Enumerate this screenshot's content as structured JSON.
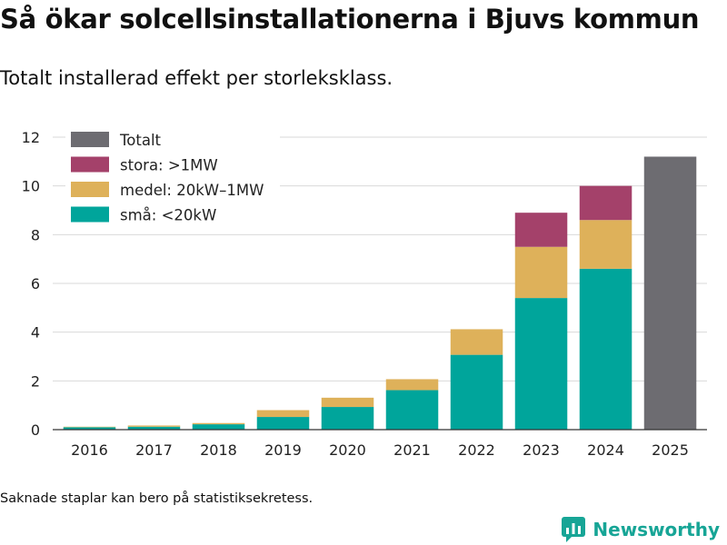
{
  "header": {
    "title": "Så ökar solcellsinstallationerna i Bjuvs kommun",
    "subtitle": "Totalt installerad effekt per storleksklass."
  },
  "footer": {
    "note": "Saknade staplar kan bero på statistiksekretess.",
    "brand": "Newsworthy",
    "brand_icon": "chart-logo-icon"
  },
  "colors": {
    "small": "#00a59b",
    "medium": "#deb15a",
    "large": "#a4416a",
    "total": "#6d6c71",
    "brand": "#17a596"
  },
  "chart_data": {
    "type": "bar",
    "stacked": true,
    "title": "Så ökar solcellsinstallationerna i Bjuvs kommun",
    "subtitle": "Totalt installerad effekt per storleksklass.",
    "xlabel": "",
    "ylabel": "",
    "ylim": [
      0,
      12
    ],
    "yticks": [
      0,
      2,
      4,
      6,
      8,
      10,
      12
    ],
    "grid": true,
    "legend_position": "top-left",
    "categories": [
      "2016",
      "2017",
      "2018",
      "2019",
      "2020",
      "2021",
      "2022",
      "2023",
      "2024",
      "2025"
    ],
    "series": [
      {
        "key": "total",
        "name": "Totalt",
        "values": [
          null,
          null,
          null,
          null,
          null,
          null,
          null,
          null,
          null,
          11.2
        ]
      },
      {
        "key": "large",
        "name": "stora: >1MW",
        "values": [
          null,
          null,
          null,
          null,
          null,
          null,
          null,
          1.4,
          1.4,
          null
        ]
      },
      {
        "key": "medium",
        "name": "medel: 20kW–1MW",
        "values": [
          0.02,
          0.05,
          0.05,
          0.28,
          0.38,
          0.45,
          1.05,
          2.1,
          2.0,
          null
        ]
      },
      {
        "key": "small",
        "name": "små: <20kW",
        "values": [
          0.1,
          0.12,
          0.22,
          0.52,
          0.93,
          1.62,
          3.07,
          5.4,
          6.6,
          null
        ]
      }
    ]
  }
}
